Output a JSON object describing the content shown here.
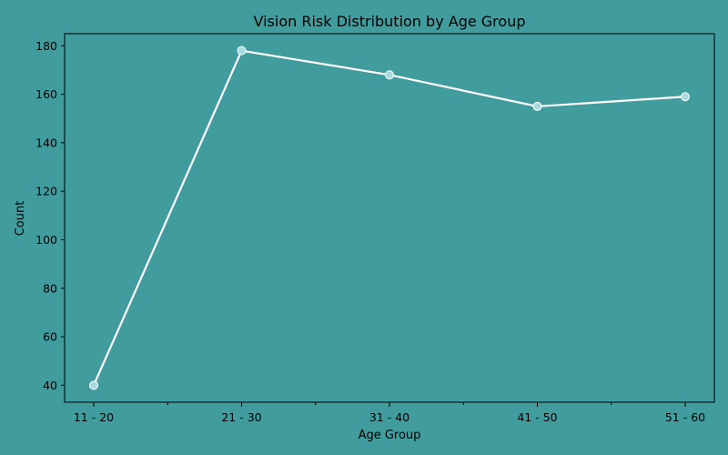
{
  "chart_data": {
    "type": "line",
    "title": "Vision Risk Distribution by Age Group",
    "xlabel": "Age Group",
    "ylabel": "Count",
    "categories": [
      "11 - 20",
      "21 - 30",
      "31 - 40",
      "41 - 50",
      "51 - 60"
    ],
    "series": [
      {
        "values": [
          40,
          178,
          168,
          155,
          159
        ]
      }
    ],
    "ylim": [
      33,
      185
    ],
    "yticks": [
      40,
      60,
      80,
      100,
      120,
      140,
      160,
      180
    ],
    "grid": false,
    "legend": "none",
    "colors": {
      "figure_background": "#419c9e",
      "axes_background": "#419c9e",
      "line": "#ffffff",
      "marker_fill": "#a8dbe0",
      "marker_edge": "#ffffff",
      "axis_text": "#000000",
      "spines": "#000000"
    }
  }
}
